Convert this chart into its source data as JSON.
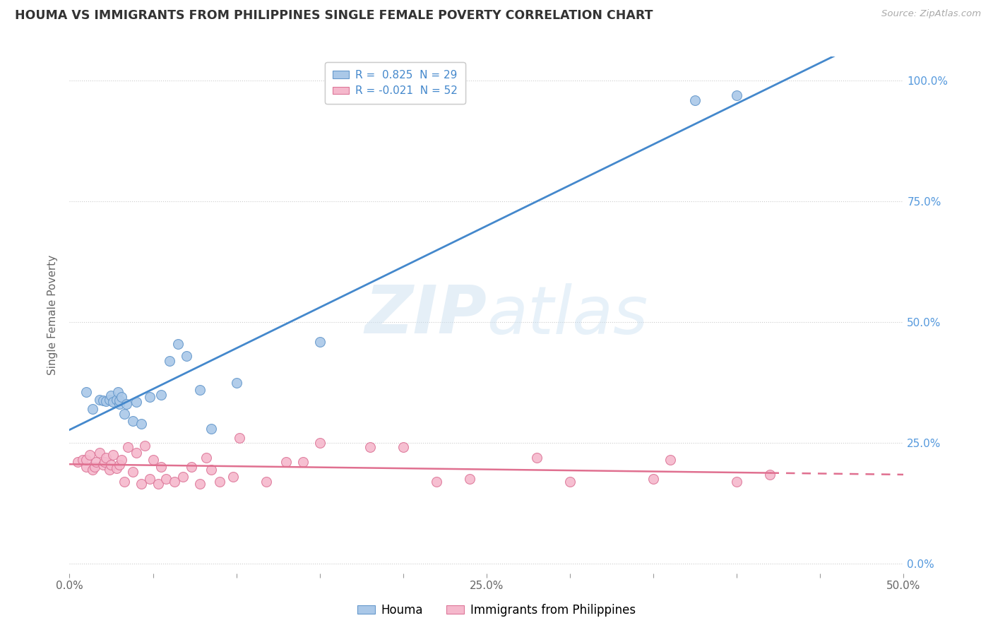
{
  "title": "HOUMA VS IMMIGRANTS FROM PHILIPPINES SINGLE FEMALE POVERTY CORRELATION CHART",
  "source_text": "Source: ZipAtlas.com",
  "ylabel": "Single Female Poverty",
  "xlim": [
    0.0,
    0.5
  ],
  "ylim": [
    -0.02,
    1.05
  ],
  "ytick_vals": [
    0.0,
    0.25,
    0.5,
    0.75,
    1.0
  ],
  "ytick_labels_right": [
    "0.0%",
    "25.0%",
    "50.0%",
    "75.0%",
    "100.0%"
  ],
  "xtick_vals": [
    0.0,
    0.05,
    0.1,
    0.15,
    0.2,
    0.25,
    0.3,
    0.35,
    0.4,
    0.45,
    0.5
  ],
  "xtick_labels": [
    "0.0%",
    "",
    "",
    "",
    "",
    "25.0%",
    "",
    "",
    "",
    "",
    "50.0%"
  ],
  "legend_r1": "R =  0.825  N = 29",
  "legend_r2": "R = -0.021  N = 52",
  "legend_bottom1": "Houma",
  "legend_bottom2": "Immigrants from Philippines",
  "houma_color": "#aac8e8",
  "houma_edge": "#6699cc",
  "phil_color": "#f5b8cc",
  "phil_edge": "#dd7799",
  "line_blue_color": "#4488cc",
  "line_pink_color": "#e07090",
  "houma_x": [
    0.01,
    0.014,
    0.018,
    0.02,
    0.022,
    0.024,
    0.025,
    0.026,
    0.028,
    0.029,
    0.03,
    0.03,
    0.031,
    0.033,
    0.034,
    0.038,
    0.04,
    0.043,
    0.048,
    0.055,
    0.06,
    0.065,
    0.07,
    0.078,
    0.085,
    0.1,
    0.15,
    0.375,
    0.4
  ],
  "houma_y": [
    0.355,
    0.32,
    0.34,
    0.338,
    0.336,
    0.34,
    0.348,
    0.335,
    0.34,
    0.355,
    0.33,
    0.338,
    0.345,
    0.31,
    0.33,
    0.295,
    0.335,
    0.29,
    0.345,
    0.35,
    0.42,
    0.455,
    0.43,
    0.36,
    0.28,
    0.375,
    0.46,
    0.96,
    0.97
  ],
  "phil_x": [
    0.005,
    0.008,
    0.01,
    0.01,
    0.012,
    0.014,
    0.015,
    0.016,
    0.018,
    0.02,
    0.021,
    0.022,
    0.024,
    0.025,
    0.026,
    0.028,
    0.03,
    0.031,
    0.033,
    0.035,
    0.038,
    0.04,
    0.043,
    0.045,
    0.048,
    0.05,
    0.053,
    0.055,
    0.058,
    0.063,
    0.068,
    0.073,
    0.078,
    0.082,
    0.085,
    0.09,
    0.098,
    0.102,
    0.118,
    0.13,
    0.14,
    0.15,
    0.18,
    0.2,
    0.22,
    0.24,
    0.28,
    0.3,
    0.35,
    0.36,
    0.4,
    0.42
  ],
  "phil_y": [
    0.21,
    0.215,
    0.2,
    0.215,
    0.225,
    0.195,
    0.2,
    0.21,
    0.23,
    0.205,
    0.21,
    0.22,
    0.195,
    0.205,
    0.225,
    0.198,
    0.205,
    0.215,
    0.17,
    0.242,
    0.19,
    0.23,
    0.165,
    0.245,
    0.175,
    0.215,
    0.165,
    0.2,
    0.175,
    0.17,
    0.18,
    0.2,
    0.165,
    0.22,
    0.195,
    0.17,
    0.18,
    0.26,
    0.17,
    0.21,
    0.21,
    0.25,
    0.242,
    0.242,
    0.17,
    0.175,
    0.22,
    0.17,
    0.175,
    0.215,
    0.17,
    0.185
  ]
}
